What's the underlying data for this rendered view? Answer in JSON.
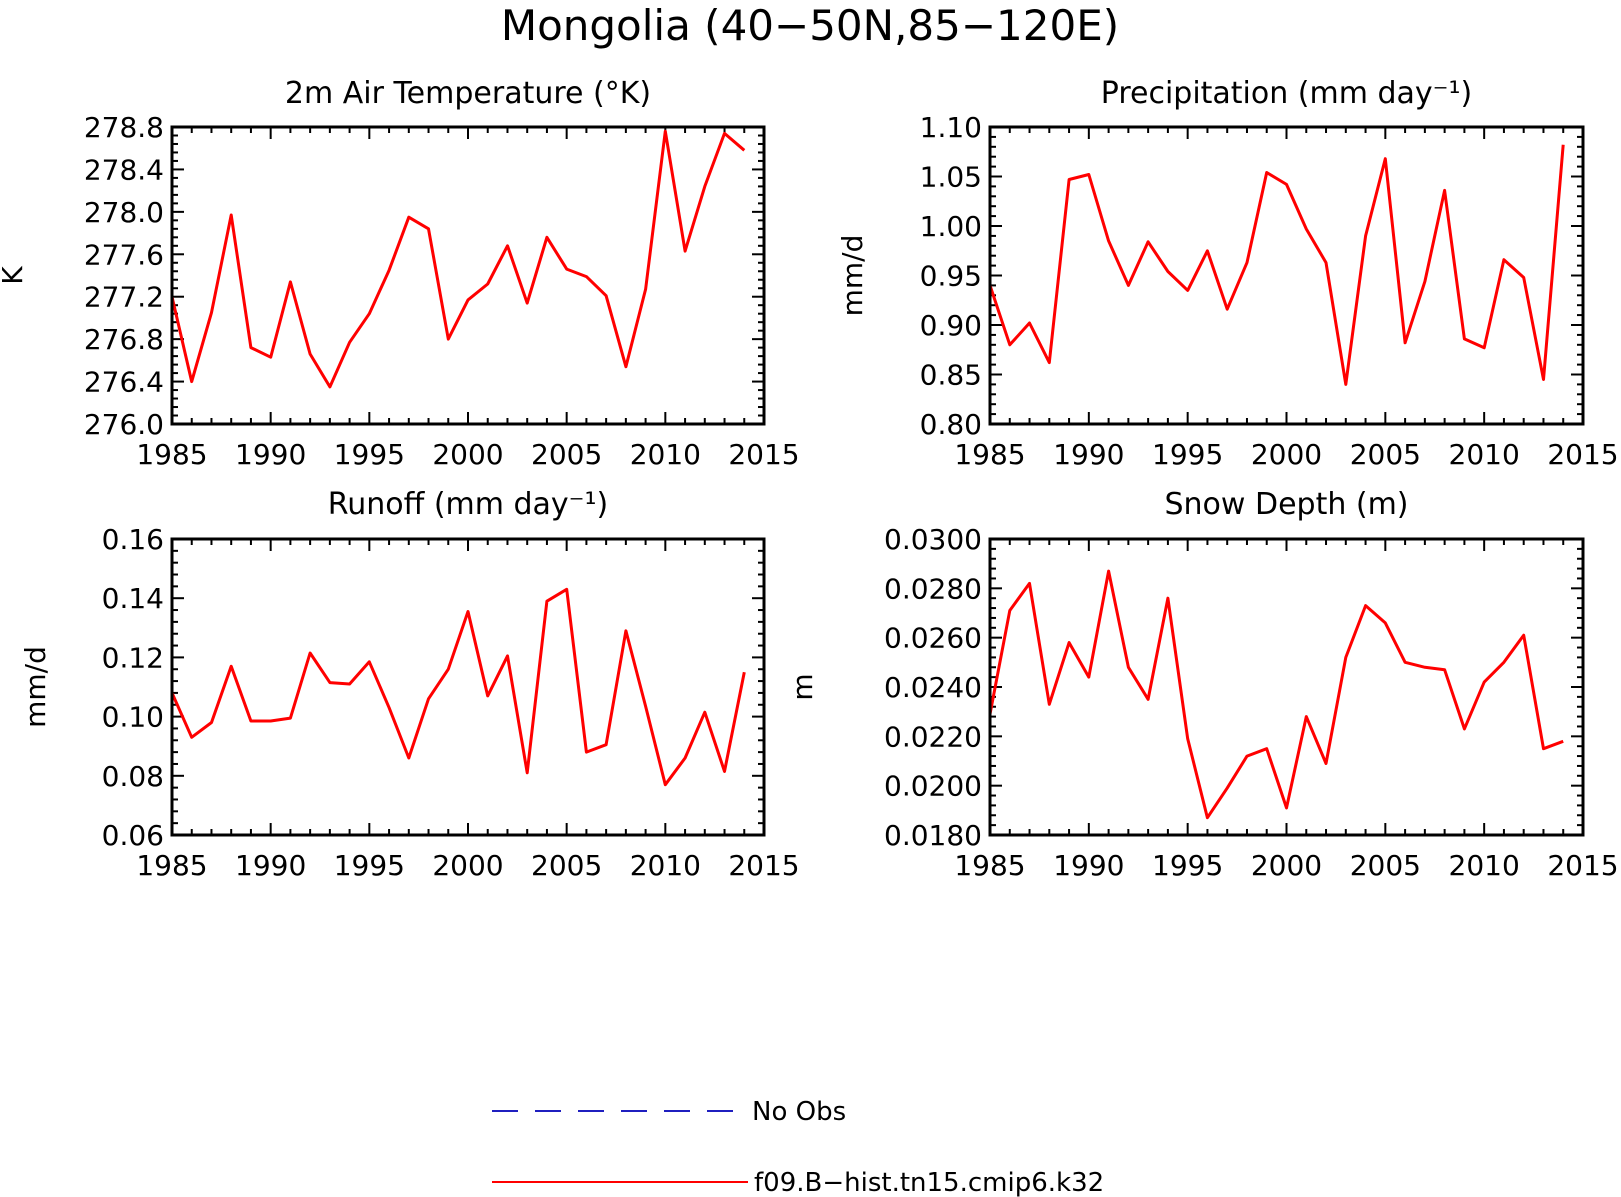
{
  "figure": {
    "title": "Mongolia (40−50N,85−120E)"
  },
  "legend": {
    "items": [
      {
        "label": "No Obs",
        "color": "#1f1fbf",
        "style": "dashed"
      },
      {
        "label": "f09.B−hist.tn15.cmip6.k32",
        "color": "#ff0000",
        "style": "solid"
      }
    ]
  },
  "chart_data": [
    {
      "type": "line",
      "title": "2m Air Temperature (°K)",
      "xlabel": "",
      "ylabel": "K",
      "xlim": [
        1985,
        2015
      ],
      "ylim": [
        276.0,
        278.8
      ],
      "xticks": [
        1985,
        1990,
        1995,
        2000,
        2005,
        2010,
        2015
      ],
      "yticks": [
        "276.0",
        "276.4",
        "276.8",
        "277.2",
        "277.6",
        "278.0",
        "278.4",
        "278.8"
      ],
      "grid": false,
      "series": [
        {
          "color": "#ff0000",
          "x": [
            1985,
            1986,
            1987,
            1988,
            1989,
            1990,
            1991,
            1992,
            1993,
            1994,
            1995,
            1996,
            1997,
            1998,
            1999,
            2000,
            2001,
            2002,
            2003,
            2004,
            2005,
            2006,
            2007,
            2008,
            2009,
            2010,
            2011,
            2012,
            2013,
            2014
          ],
          "y": [
            277.2,
            276.4,
            277.05,
            277.97,
            276.72,
            276.63,
            277.34,
            276.66,
            276.35,
            276.77,
            277.04,
            277.45,
            277.95,
            277.84,
            276.8,
            277.17,
            277.32,
            277.68,
            277.14,
            277.76,
            277.46,
            277.39,
            277.21,
            276.54,
            277.27,
            278.76,
            277.63,
            278.24,
            278.74,
            278.58
          ]
        }
      ]
    },
    {
      "type": "line",
      "title": "Precipitation (mm day⁻¹)",
      "xlabel": "",
      "ylabel": "mm/d",
      "xlim": [
        1985,
        2015
      ],
      "ylim": [
        0.8,
        1.1
      ],
      "xticks": [
        1985,
        1990,
        1995,
        2000,
        2005,
        2010,
        2015
      ],
      "yticks": [
        "0.80",
        "0.85",
        "0.90",
        "0.95",
        "1.00",
        "1.05",
        "1.10"
      ],
      "grid": false,
      "series": [
        {
          "color": "#ff0000",
          "x": [
            1985,
            1986,
            1987,
            1988,
            1989,
            1990,
            1991,
            1992,
            1993,
            1994,
            1995,
            1996,
            1997,
            1998,
            1999,
            2000,
            2001,
            2002,
            2003,
            2004,
            2005,
            2006,
            2007,
            2008,
            2009,
            2010,
            2011,
            2012,
            2013,
            2014
          ],
          "y": [
            0.94,
            0.88,
            0.902,
            0.862,
            1.047,
            1.052,
            0.985,
            0.94,
            0.984,
            0.954,
            0.935,
            0.975,
            0.916,
            0.963,
            1.054,
            1.042,
            0.997,
            0.963,
            0.84,
            0.99,
            1.068,
            0.882,
            0.944,
            1.036,
            0.886,
            0.877,
            0.966,
            0.948,
            0.845,
            1.082
          ]
        }
      ]
    },
    {
      "type": "line",
      "title": "Runoff (mm day⁻¹)",
      "xlabel": "",
      "ylabel": "mm/d",
      "xlim": [
        1985,
        2015
      ],
      "ylim": [
        0.06,
        0.16
      ],
      "xticks": [
        1985,
        1990,
        1995,
        2000,
        2005,
        2010,
        2015
      ],
      "yticks": [
        "0.06",
        "0.08",
        "0.10",
        "0.12",
        "0.14",
        "0.16"
      ],
      "grid": false,
      "series": [
        {
          "color": "#ff0000",
          "x": [
            1985,
            1986,
            1987,
            1988,
            1989,
            1990,
            1991,
            1992,
            1993,
            1994,
            1995,
            1996,
            1997,
            1998,
            1999,
            2000,
            2001,
            2002,
            2003,
            2004,
            2005,
            2006,
            2007,
            2008,
            2009,
            2010,
            2011,
            2012,
            2013,
            2014
          ],
          "y": [
            0.108,
            0.093,
            0.098,
            0.117,
            0.0985,
            0.0985,
            0.0995,
            0.1215,
            0.1115,
            0.111,
            0.1185,
            0.103,
            0.086,
            0.106,
            0.116,
            0.1355,
            0.107,
            0.1205,
            0.081,
            0.139,
            0.143,
            0.088,
            0.0905,
            0.129,
            0.1035,
            0.077,
            0.086,
            0.1015,
            0.0815,
            0.115
          ]
        }
      ]
    },
    {
      "type": "line",
      "title": "Snow Depth (m)",
      "xlabel": "",
      "ylabel": "m",
      "xlim": [
        1985,
        2015
      ],
      "ylim": [
        0.018,
        0.03
      ],
      "xticks": [
        1985,
        1990,
        1995,
        2000,
        2005,
        2010,
        2015
      ],
      "yticks": [
        "0.0180",
        "0.0200",
        "0.0220",
        "0.0240",
        "0.0260",
        "0.0280",
        "0.0300"
      ],
      "grid": false,
      "series": [
        {
          "color": "#ff0000",
          "x": [
            1985,
            1986,
            1987,
            1988,
            1989,
            1990,
            1991,
            1992,
            1993,
            1994,
            1995,
            1996,
            1997,
            1998,
            1999,
            2000,
            2001,
            2002,
            2003,
            2004,
            2005,
            2006,
            2007,
            2008,
            2009,
            2010,
            2011,
            2012,
            2013,
            2014
          ],
          "y": [
            0.0229,
            0.0271,
            0.0282,
            0.0233,
            0.0258,
            0.0244,
            0.0287,
            0.0248,
            0.0235,
            0.0276,
            0.0219,
            0.0187,
            0.0199,
            0.0212,
            0.0215,
            0.0191,
            0.0228,
            0.0209,
            0.0252,
            0.0273,
            0.0266,
            0.025,
            0.0248,
            0.0247,
            0.0223,
            0.0242,
            0.025,
            0.0261,
            0.0215,
            0.0218
          ]
        }
      ]
    }
  ]
}
